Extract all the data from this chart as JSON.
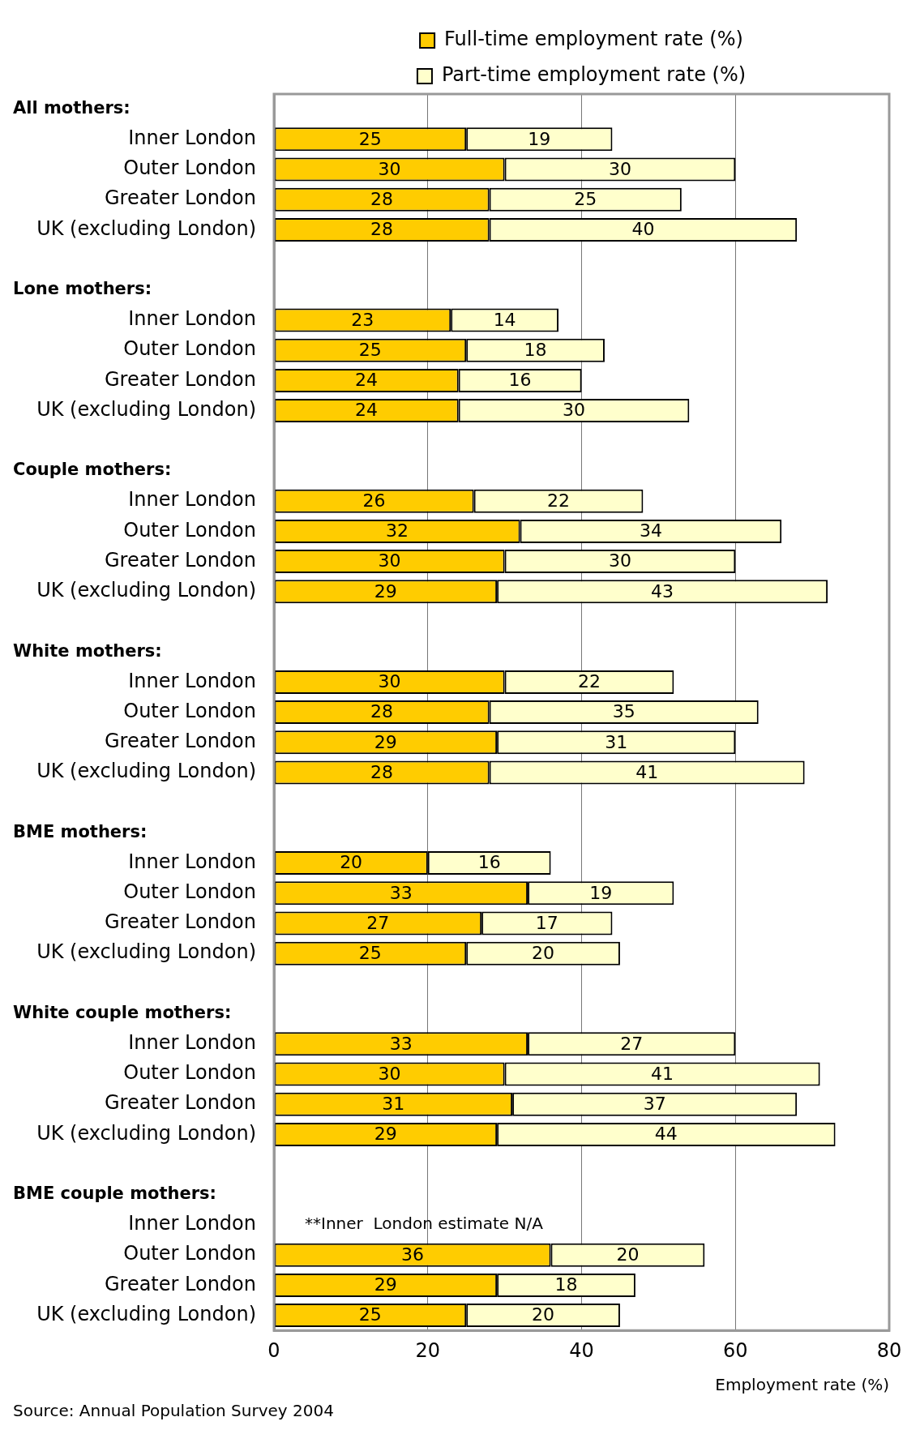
{
  "chart_data": {
    "type": "bar",
    "orientation": "horizontal",
    "stacked": true,
    "categories": [
      null,
      "Inner London",
      "Outer London",
      "Greater London",
      "UK (excluding London)",
      null,
      null,
      "Inner London",
      "Outer London",
      "Greater London",
      "UK (excluding London)",
      null,
      null,
      "Inner London",
      "Outer London",
      "Greater London",
      "UK (excluding London)",
      null,
      null,
      "Inner London",
      "Outer London",
      "Greater London",
      "UK (excluding London)",
      null,
      null,
      "Inner London",
      "Outer London",
      "Greater London",
      "UK (excluding London)",
      null,
      null,
      "Inner London",
      "Outer London",
      "Greater London",
      "UK (excluding London)",
      null,
      null,
      "Inner London",
      "Outer London",
      "Greater London",
      "UK (excluding London)"
    ],
    "series": [
      {
        "name": "Full-time employment rate (%)",
        "color": "#ffcc00",
        "values": [
          null,
          25,
          30,
          28,
          28,
          null,
          null,
          23,
          25,
          24,
          24,
          null,
          null,
          26,
          32,
          30,
          29,
          null,
          null,
          30,
          28,
          29,
          28,
          null,
          null,
          20,
          33,
          27,
          25,
          null,
          null,
          33,
          30,
          31,
          29,
          null,
          null,
          null,
          36,
          29,
          25
        ]
      },
      {
        "name": "Part-time employment rate (%)",
        "color": "#ffffcc",
        "values": [
          null,
          19,
          30,
          25,
          40,
          null,
          null,
          14,
          18,
          16,
          30,
          null,
          null,
          22,
          34,
          30,
          43,
          null,
          null,
          22,
          35,
          31,
          41,
          null,
          null,
          16,
          19,
          17,
          20,
          null,
          null,
          27,
          41,
          37,
          44,
          null,
          null,
          null,
          20,
          18,
          20
        ]
      }
    ],
    "xlim": [
      0,
      80
    ],
    "xticks": [
      0,
      20,
      40,
      60,
      80
    ],
    "xlabel": "Employment rate (%)",
    "grid": "x",
    "legend": "top",
    "data_labels": true,
    "annotations": [
      "All mothers:",
      "Lone mothers:",
      "Couple mothers:",
      "White mothers:",
      "BME mothers:",
      "White couple mothers:",
      "BME couple mothers:",
      "**Inner  London estimate N/A",
      "Source: Annual Population Survey 2004"
    ]
  }
}
